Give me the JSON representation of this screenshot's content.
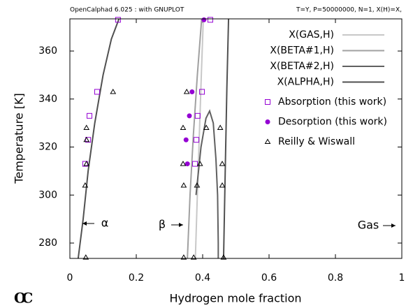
{
  "chart_data": {
    "type": "line",
    "header_left": "OpenCalphad   6.025 : with GNUPLOT",
    "header_right": "T=Y,  P=50000000, N=1, X(H)=X,",
    "logo": "OC",
    "xlabel": "Hydrogen mole fraction",
    "ylabel": "Temperature [K]",
    "xlim": [
      0,
      1
    ],
    "ylim": [
      273.6,
      373.4
    ],
    "xticks": [
      0,
      0.2,
      0.4,
      0.6,
      0.8,
      1
    ],
    "yticks": [
      280,
      300,
      320,
      340,
      360
    ],
    "annotations": [
      "α",
      "β",
      "Gas"
    ],
    "series": [
      {
        "name": "X(GAS,H)",
        "type": "line",
        "color": "#c8c8c8",
        "x": [
          0.378,
          0.384,
          0.39,
          0.396,
          0.402
        ],
        "values": [
          273.6,
          300,
          325,
          350,
          373.4
        ]
      },
      {
        "name": "X(BETA#1,H)",
        "type": "line",
        "color": "#a0a0a0",
        "x": [
          0.354,
          0.362,
          0.372,
          0.384,
          0.397
        ],
        "values": [
          273.6,
          300,
          325,
          350,
          373.4
        ]
      },
      {
        "name": "X(BETA#2,H)",
        "type": "line",
        "color": "#606060",
        "x": [
          0.38,
          0.395,
          0.41,
          0.421,
          0.432,
          0.44,
          0.445,
          0.447,
          0.447
        ],
        "values": [
          300,
          320,
          332,
          335,
          330,
          315,
          300,
          280,
          273.6
        ]
      },
      {
        "name": "X(ALPHA,H)",
        "type": "line",
        "color": "#505050",
        "x": [
          0.025,
          0.04,
          0.055,
          0.075,
          0.1,
          0.125,
          0.148,
          null,
          0.463,
          0.468,
          0.473,
          0.478
        ],
        "values": [
          273.6,
          290,
          310,
          330,
          350,
          365,
          373.4,
          null,
          273.6,
          310,
          345,
          373.4
        ]
      },
      {
        "name": "Absorption (this work)",
        "type": "scatter",
        "marker": "square",
        "color": "#9400d3",
        "x": [
          0.145,
          0.082,
          0.059,
          0.055,
          0.046,
          0.423,
          0.398,
          0.385,
          0.381,
          0.377
        ],
        "values": [
          373,
          343,
          333,
          323,
          313,
          373,
          343,
          333,
          323,
          313
        ]
      },
      {
        "name": "Desorption (this work)",
        "type": "scatter",
        "marker": "circle",
        "color": "#9400d3",
        "x": [
          0.404,
          0.368,
          0.36,
          0.35,
          0.354
        ],
        "values": [
          373,
          343,
          333,
          323,
          313
        ]
      },
      {
        "name": "Reilly & Wiswall",
        "type": "scatter",
        "marker": "triangle",
        "color": "#000000",
        "x": [
          0.048,
          0.046,
          0.05,
          0.05,
          0.05,
          0.13,
          0.343,
          0.343,
          0.341,
          0.341,
          0.352,
          0.373,
          0.383,
          0.392,
          0.411,
          0.453,
          0.459,
          0.459,
          0.463
        ],
        "values": [
          274,
          304,
          313,
          323,
          328,
          343,
          274,
          304,
          313,
          328,
          343,
          274,
          304,
          313,
          328,
          328,
          313,
          304,
          274
        ]
      }
    ]
  }
}
